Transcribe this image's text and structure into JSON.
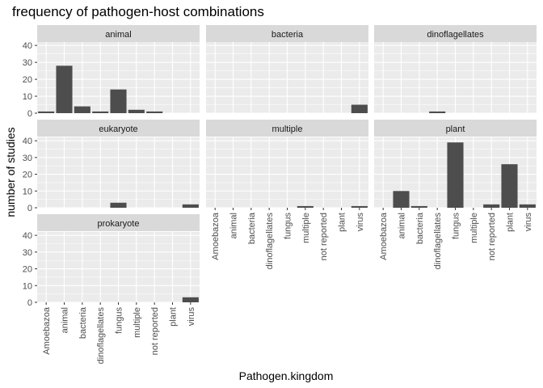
{
  "chart_data": {
    "type": "bar",
    "title": "frequency of pathogen-host combinations",
    "xlabel": "Pathogen.kingdom",
    "ylabel": "number of studies",
    "ylim": [
      0,
      42
    ],
    "yticks": [
      0,
      10,
      20,
      30,
      40
    ],
    "grid": true,
    "categories": [
      "Amoebazoa",
      "animal",
      "bacteria",
      "dinoflagellates",
      "fungus",
      "multiple",
      "not reported",
      "plant",
      "virus"
    ],
    "facets": [
      {
        "label": "animal",
        "values": [
          1,
          28,
          4,
          1,
          14,
          2,
          1,
          0,
          0
        ]
      },
      {
        "label": "bacteria",
        "values": [
          0,
          0,
          0,
          0,
          0,
          0,
          0,
          0,
          5
        ]
      },
      {
        "label": "dinoflagellates",
        "values": [
          0,
          0,
          0,
          1,
          0,
          0,
          0,
          0,
          0
        ]
      },
      {
        "label": "eukaryote",
        "values": [
          0,
          0,
          0,
          0,
          3,
          0,
          0,
          0,
          2
        ]
      },
      {
        "label": "multiple",
        "values": [
          0,
          0,
          0,
          0,
          0,
          1,
          0,
          0,
          1
        ]
      },
      {
        "label": "plant",
        "values": [
          0,
          10,
          1,
          0,
          39,
          0,
          2,
          26,
          2
        ]
      },
      {
        "label": "prokaryote",
        "values": [
          0,
          0,
          0,
          0,
          0,
          0,
          0,
          0,
          3
        ]
      }
    ],
    "colors": {
      "bar": "#4d4d4d",
      "panel": "#ebebeb",
      "strip": "#d9d9d9",
      "grid": "#ffffff"
    }
  }
}
